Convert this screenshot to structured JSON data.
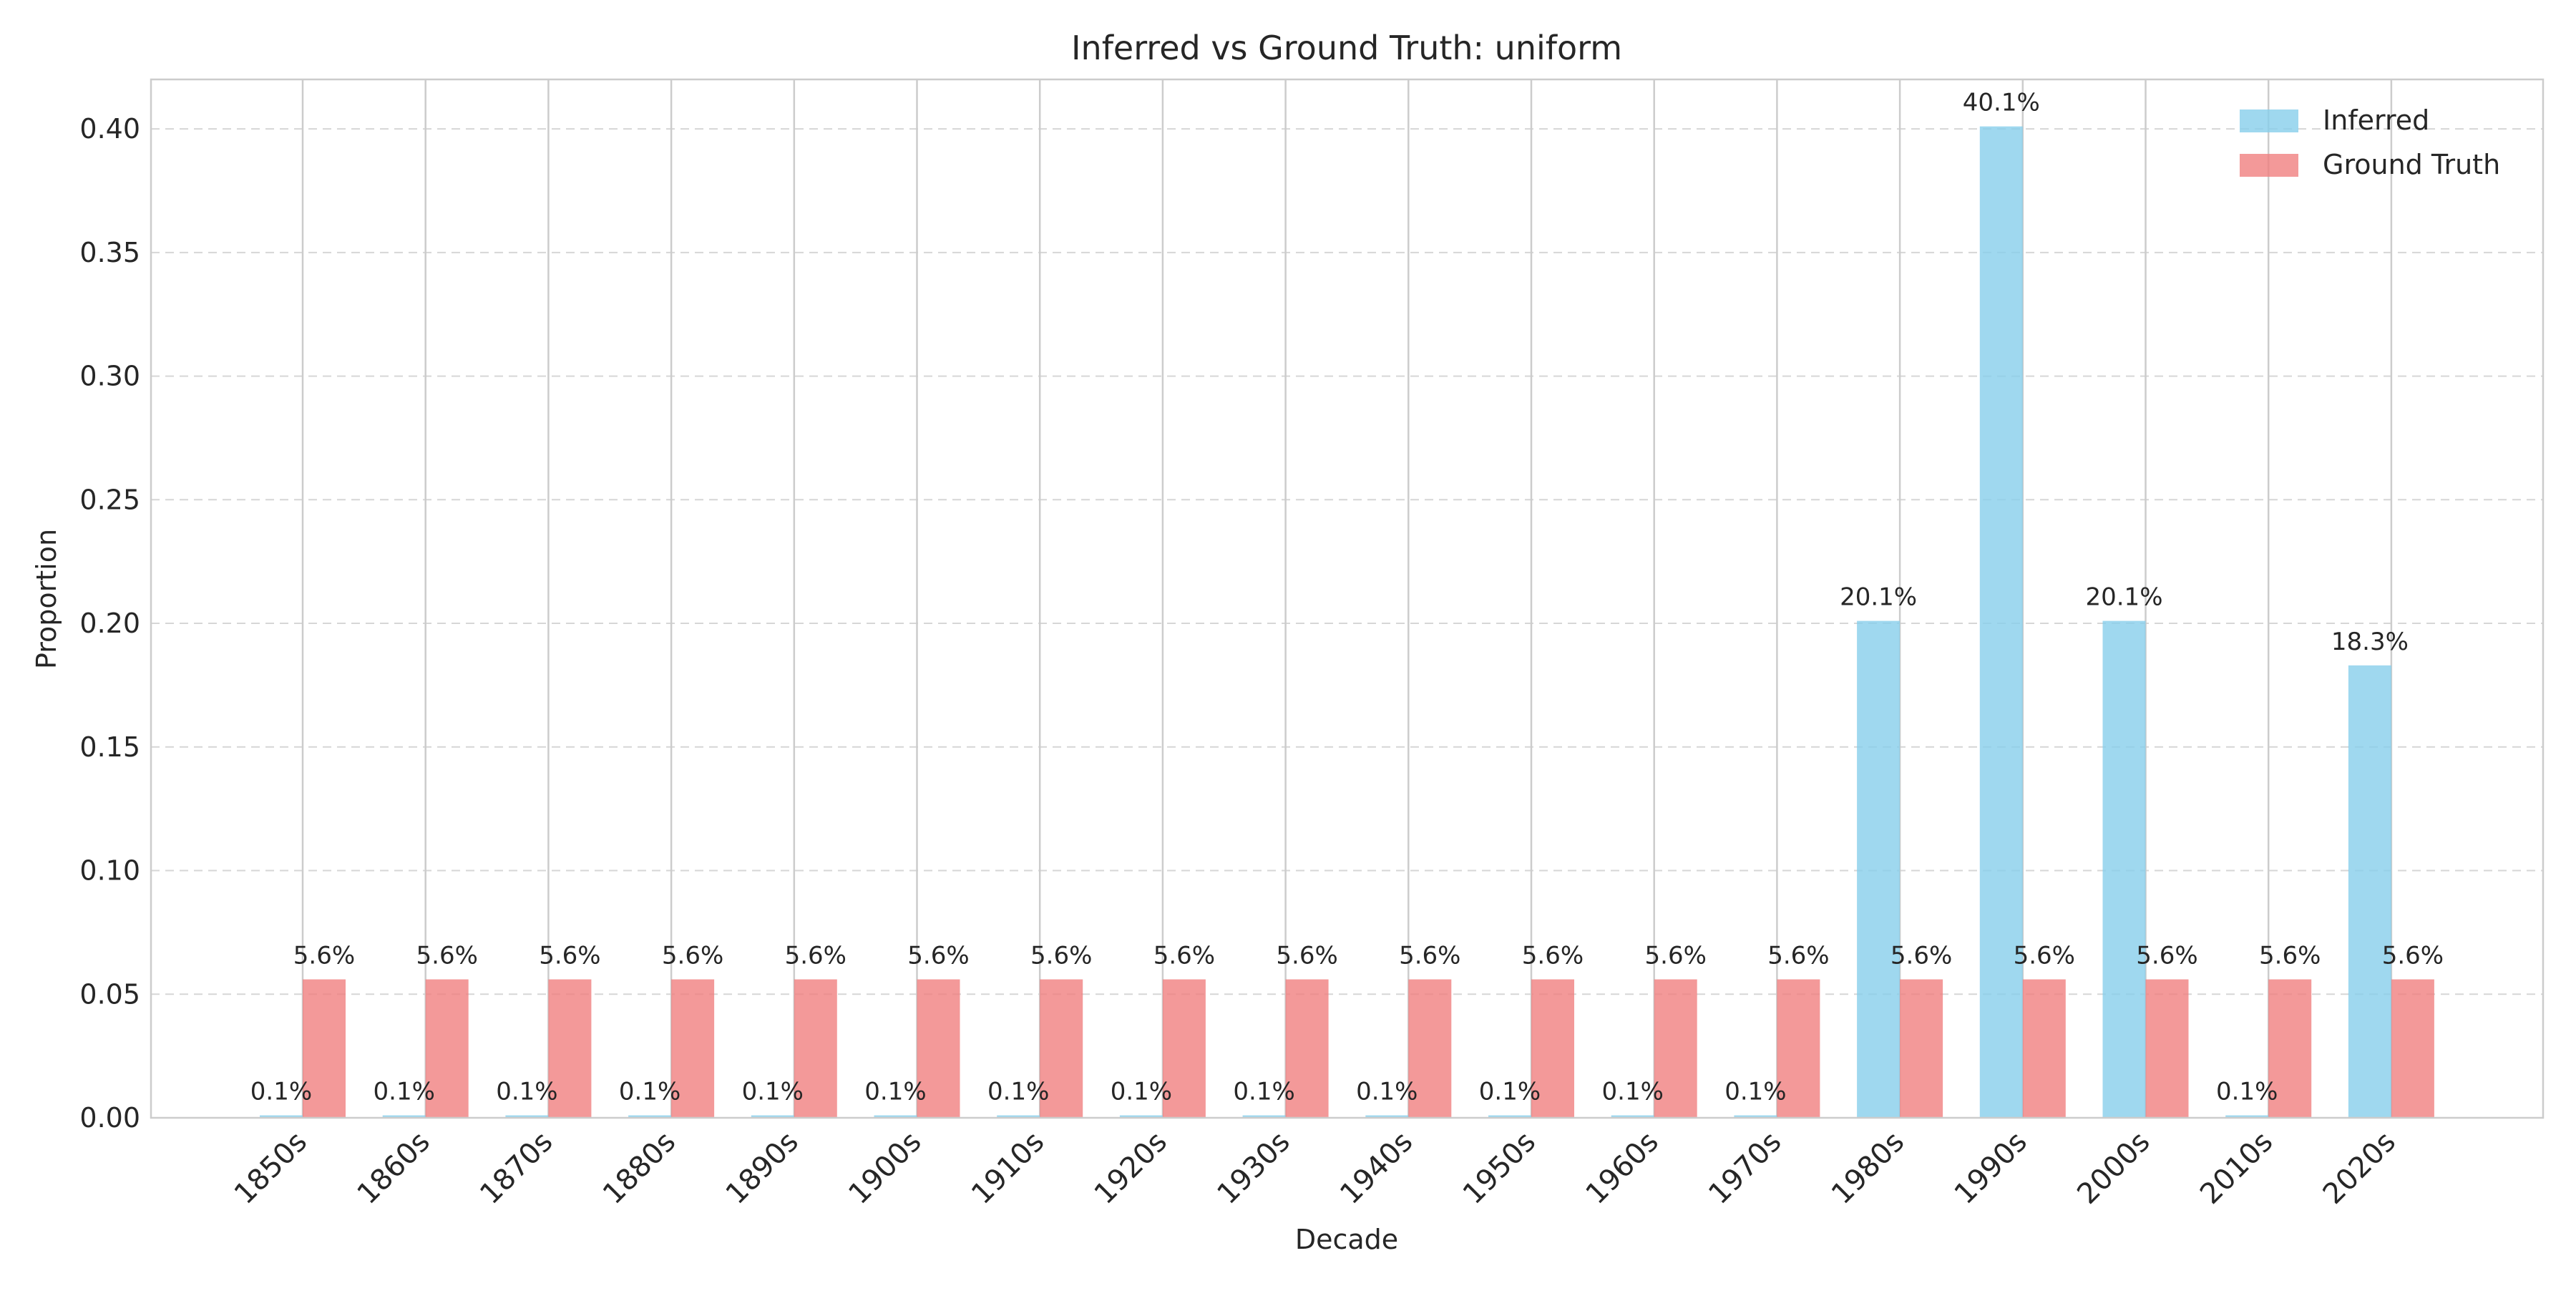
{
  "chart_data": {
    "type": "bar",
    "title": "Inferred vs Ground Truth: uniform",
    "xlabel": "Decade",
    "ylabel": "Proportion",
    "ylim": [
      0,
      0.42
    ],
    "yticks": [
      0.0,
      0.05,
      0.1,
      0.15,
      0.2,
      0.25,
      0.3,
      0.35,
      0.4
    ],
    "ytick_labels": [
      "0.00",
      "0.05",
      "0.10",
      "0.15",
      "0.20",
      "0.25",
      "0.30",
      "0.35",
      "0.40"
    ],
    "grid": true,
    "legend_position": "top-right",
    "categories": [
      "1850s",
      "1860s",
      "1870s",
      "1880s",
      "1890s",
      "1900s",
      "1910s",
      "1920s",
      "1930s",
      "1940s",
      "1950s",
      "1960s",
      "1970s",
      "1980s",
      "1990s",
      "2000s",
      "2010s",
      "2020s"
    ],
    "series": [
      {
        "name": "Inferred",
        "color": "#87CEEB",
        "values": [
          0.001,
          0.001,
          0.001,
          0.001,
          0.001,
          0.001,
          0.001,
          0.001,
          0.001,
          0.001,
          0.001,
          0.001,
          0.001,
          0.201,
          0.401,
          0.201,
          0.001,
          0.183
        ],
        "labels": [
          "0.1%",
          "0.1%",
          "0.1%",
          "0.1%",
          "0.1%",
          "0.1%",
          "0.1%",
          "0.1%",
          "0.1%",
          "0.1%",
          "0.1%",
          "0.1%",
          "0.1%",
          "20.1%",
          "40.1%",
          "20.1%",
          "0.1%",
          "18.3%"
        ]
      },
      {
        "name": "Ground Truth",
        "color": "#F08080",
        "values": [
          0.056,
          0.056,
          0.056,
          0.056,
          0.056,
          0.056,
          0.056,
          0.056,
          0.056,
          0.056,
          0.056,
          0.056,
          0.056,
          0.056,
          0.056,
          0.056,
          0.056,
          0.056
        ],
        "labels": [
          "5.6%",
          "5.6%",
          "5.6%",
          "5.6%",
          "5.6%",
          "5.6%",
          "5.6%",
          "5.6%",
          "5.6%",
          "5.6%",
          "5.6%",
          "5.6%",
          "5.6%",
          "5.6%",
          "5.6%",
          "5.6%",
          "5.6%",
          "5.6%"
        ]
      }
    ]
  }
}
